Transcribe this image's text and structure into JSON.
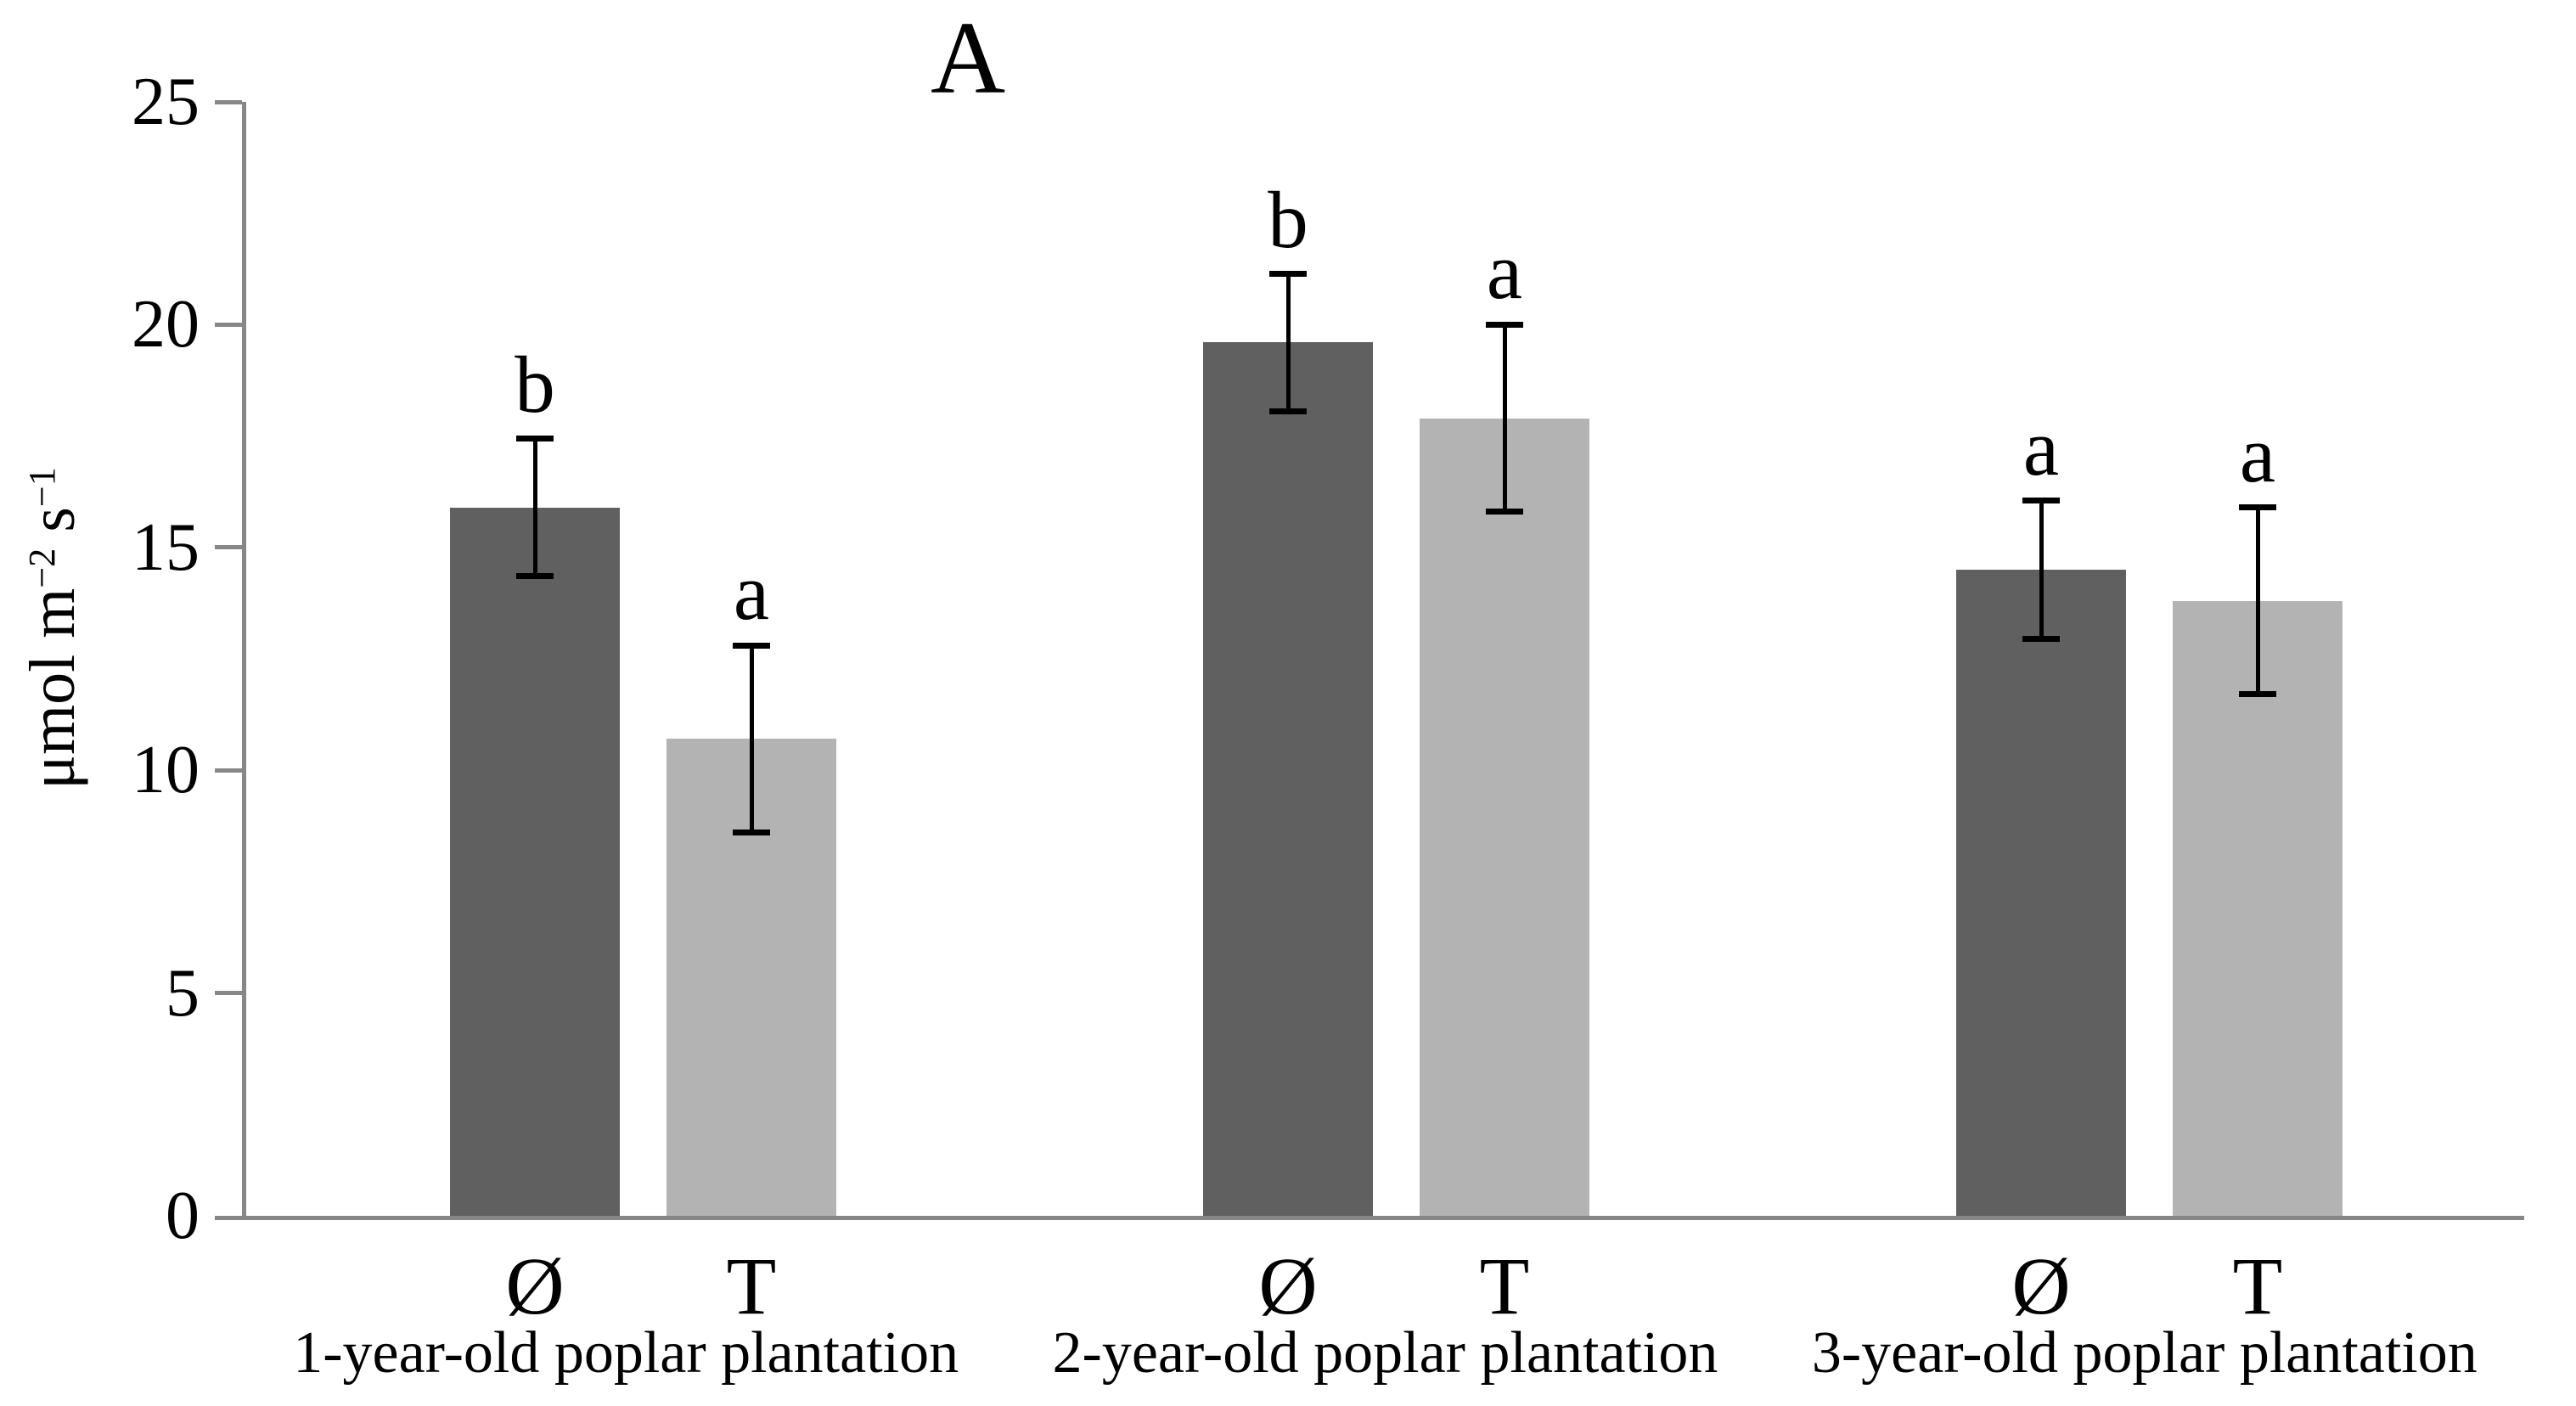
{
  "figure": {
    "panel_label": "A"
  },
  "chart_data": {
    "type": "bar",
    "title": "A",
    "xlabel": "",
    "ylabel": "μmol m⁻² s⁻¹",
    "ylabel_parts": {
      "base1": "μmol m",
      "sup1": "−2",
      "base2": " s",
      "sup2": "−1"
    },
    "ylim": [
      0,
      25
    ],
    "yticks": [
      0,
      5,
      10,
      15,
      20,
      25
    ],
    "grid": false,
    "legend_position": "none",
    "categories": [
      "1-year-old poplar plantation",
      "2-year-old poplar plantation",
      "3-year-old poplar plantation"
    ],
    "bar_labels": [
      "Ø",
      "T"
    ],
    "series": [
      {
        "name": "Ø",
        "color": "#606060",
        "values": [
          15.9,
          19.6,
          14.5
        ],
        "errors": [
          1.55,
          1.55,
          1.55
        ],
        "sig_letters": [
          "b",
          "b",
          "a"
        ]
      },
      {
        "name": "T",
        "color": "#b3b3b3",
        "values": [
          10.7,
          17.9,
          13.8
        ],
        "errors": [
          2.1,
          2.1,
          2.1
        ],
        "sig_letters": [
          "a",
          "a",
          "a"
        ]
      }
    ],
    "axis_color": "#878787",
    "error_bar_color": "#000000",
    "text_color": "#000000"
  }
}
